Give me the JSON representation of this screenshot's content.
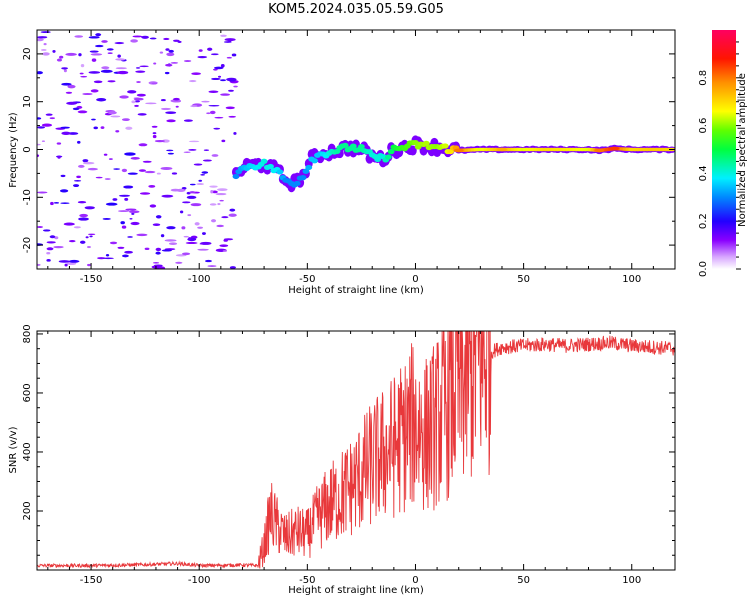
{
  "title": "KOM5.2024.035.05.59.G05",
  "chart_data": [
    {
      "type": "heatmap",
      "xlabel": "Height of straight line (km)",
      "ylabel": "Frequency (Hz)",
      "xlim": [
        -175,
        120
      ],
      "ylim": [
        -25,
        25
      ],
      "xticks": [
        -150,
        -100,
        -50,
        0,
        50,
        100
      ],
      "yticks": [
        -20,
        -10,
        0,
        10,
        20
      ],
      "xtick_labels": [
        "-150",
        "-100",
        "-50",
        "0",
        "50",
        "100"
      ],
      "ytick_labels": [
        "-20",
        "-10",
        "0",
        "10",
        "20"
      ],
      "colorbar": {
        "label": "Normalized spectral amplitude",
        "range": [
          0.0,
          1.0
        ],
        "ticks": [
          0.0,
          0.2,
          0.4,
          0.6,
          0.8
        ],
        "tick_labels": [
          "0.0",
          "0.2",
          "0.4",
          "0.6",
          "0.8"
        ],
        "colormap": "gist_rainbow_r"
      },
      "noise_region": {
        "x_range": [
          -175,
          -83
        ],
        "amplitude_range": [
          0.05,
          0.2
        ]
      },
      "signal_track": [
        {
          "x": -83,
          "y": -5,
          "amp": 0.3
        },
        {
          "x": -78,
          "y": -3.5,
          "amp": 0.35
        },
        {
          "x": -70,
          "y": -3,
          "amp": 0.4
        },
        {
          "x": -64,
          "y": -4.5,
          "amp": 0.38
        },
        {
          "x": -60,
          "y": -6.5,
          "amp": 0.3
        },
        {
          "x": -56,
          "y": -7,
          "amp": 0.3
        },
        {
          "x": -52,
          "y": -5.5,
          "amp": 0.3
        },
        {
          "x": -48,
          "y": -2,
          "amp": 0.35
        },
        {
          "x": -44,
          "y": -1,
          "amp": 0.35
        },
        {
          "x": -40,
          "y": -0.5,
          "amp": 0.4
        },
        {
          "x": -35,
          "y": 0,
          "amp": 0.45
        },
        {
          "x": -30,
          "y": 0.5,
          "amp": 0.45
        },
        {
          "x": -25,
          "y": 0,
          "amp": 0.45
        },
        {
          "x": -20,
          "y": -1.5,
          "amp": 0.4
        },
        {
          "x": -15,
          "y": -2,
          "amp": 0.4
        },
        {
          "x": -10,
          "y": 0,
          "amp": 0.5
        },
        {
          "x": -5,
          "y": 0.5,
          "amp": 0.55
        },
        {
          "x": 0,
          "y": 1,
          "amp": 0.6
        },
        {
          "x": 5,
          "y": 0.8,
          "amp": 0.62
        },
        {
          "x": 10,
          "y": 0.5,
          "amp": 0.6
        },
        {
          "x": 15,
          "y": 0.2,
          "amp": 0.65
        },
        {
          "x": 20,
          "y": -0.2,
          "amp": 0.8
        },
        {
          "x": 30,
          "y": 0,
          "amp": 0.65
        },
        {
          "x": 40,
          "y": 0,
          "amp": 0.75
        },
        {
          "x": 50,
          "y": 0,
          "amp": 0.65
        },
        {
          "x": 60,
          "y": 0,
          "amp": 0.7
        },
        {
          "x": 70,
          "y": 0,
          "amp": 0.68
        },
        {
          "x": 80,
          "y": 0,
          "amp": 0.65
        },
        {
          "x": 85,
          "y": -0.2,
          "amp": 0.8
        },
        {
          "x": 92,
          "y": 0.2,
          "amp": 0.85
        },
        {
          "x": 100,
          "y": 0,
          "amp": 0.7
        },
        {
          "x": 110,
          "y": 0,
          "amp": 0.72
        },
        {
          "x": 120,
          "y": 0,
          "amp": 0.7
        }
      ]
    },
    {
      "type": "line",
      "xlabel": "Height of straight line (km)",
      "ylabel": "SNR (v/v)",
      "xlim": [
        -175,
        120
      ],
      "ylim": [
        0,
        810
      ],
      "xticks": [
        -150,
        -100,
        -50,
        0,
        50,
        100
      ],
      "yticks": [
        200,
        400,
        600,
        800
      ],
      "xtick_labels": [
        "-150",
        "-100",
        "-50",
        "0",
        "50",
        "100"
      ],
      "ytick_labels": [
        "200",
        "400",
        "600",
        "800"
      ],
      "color": "#e8383b",
      "series": [
        {
          "x": [
            -175,
            -150,
            -125,
            -110,
            -100,
            -90,
            -80,
            -73,
            -70,
            -67,
            -64,
            -60,
            -55,
            -50,
            -45,
            -40,
            -35,
            -30,
            -25,
            -20,
            -15,
            -10,
            -5,
            0,
            5,
            10,
            15,
            20,
            25,
            30,
            35,
            40,
            50,
            60,
            70,
            80,
            90,
            100,
            110,
            120
          ],
          "y": [
            15,
            15,
            18,
            22,
            15,
            16,
            17,
            15,
            80,
            190,
            150,
            110,
            130,
            120,
            180,
            220,
            250,
            280,
            320,
            360,
            390,
            420,
            460,
            500,
            460,
            500,
            560,
            620,
            660,
            710,
            740,
            755,
            760,
            765,
            760,
            765,
            770,
            760,
            755,
            750
          ]
        }
      ]
    }
  ]
}
